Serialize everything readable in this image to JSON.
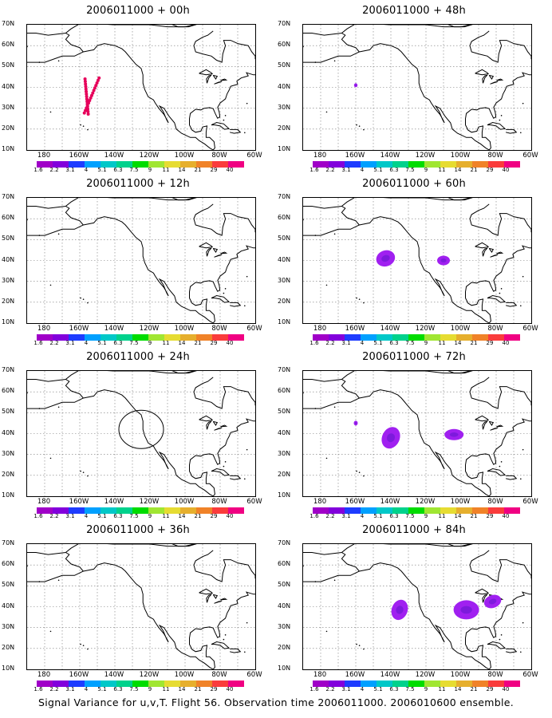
{
  "panels": [
    {
      "title": "2006011000 + 00h",
      "feature": "track"
    },
    {
      "title": "2006011000 + 48h",
      "feature": "dot"
    },
    {
      "title": "2006011000 + 12h",
      "feature": "none"
    },
    {
      "title": "2006011000 + 60h",
      "feature": "blobs60"
    },
    {
      "title": "2006011000 + 24h",
      "feature": "circle"
    },
    {
      "title": "2006011000 + 72h",
      "feature": "blobs72"
    },
    {
      "title": "2006011000 + 36h",
      "feature": "none"
    },
    {
      "title": "2006011000 + 84h",
      "feature": "blobs84"
    }
  ],
  "lat_labels": [
    "70N",
    "60N",
    "50N",
    "40N",
    "30N",
    "20N",
    "10N"
  ],
  "lon_labels": [
    "180",
    "160W",
    "140W",
    "120W",
    "100W",
    "80W",
    "60W"
  ],
  "colorbar": {
    "colors": [
      "#a000c8",
      "#8200dc",
      "#1e3cff",
      "#00a0ff",
      "#00c8c8",
      "#00d28c",
      "#00dc00",
      "#a0e632",
      "#e6dc32",
      "#e6af2d",
      "#f08228",
      "#fa3c3c",
      "#f00082"
    ],
    "labels": [
      "1.6",
      "2.2",
      "3.1",
      "4",
      "5.1",
      "6.3",
      "7.5",
      "9",
      "11",
      "14",
      "21",
      "29",
      "40"
    ]
  },
  "caption": "Signal Variance for u,v,T. Flight 56. Observation time 2006011000. 2006010600 ensemble.",
  "colors": {
    "track": "#e6005a",
    "variance": "#a020f0",
    "variance_core": "#7d1adc",
    "coast": "#000000"
  }
}
